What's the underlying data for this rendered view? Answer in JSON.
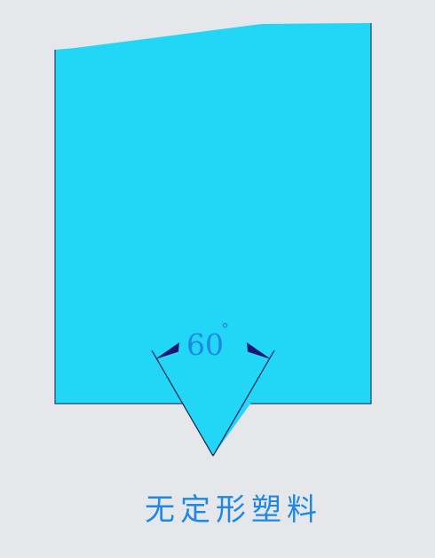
{
  "diagram": {
    "angle_value": "60",
    "angle_unit": "°",
    "caption": "无定形塑料"
  },
  "colors": {
    "background": "#e6e7eb",
    "shape_fill": "#22d6f5",
    "outline": "#1b1b4d",
    "arrow": "#1b1470",
    "text": "#1e88e5"
  }
}
